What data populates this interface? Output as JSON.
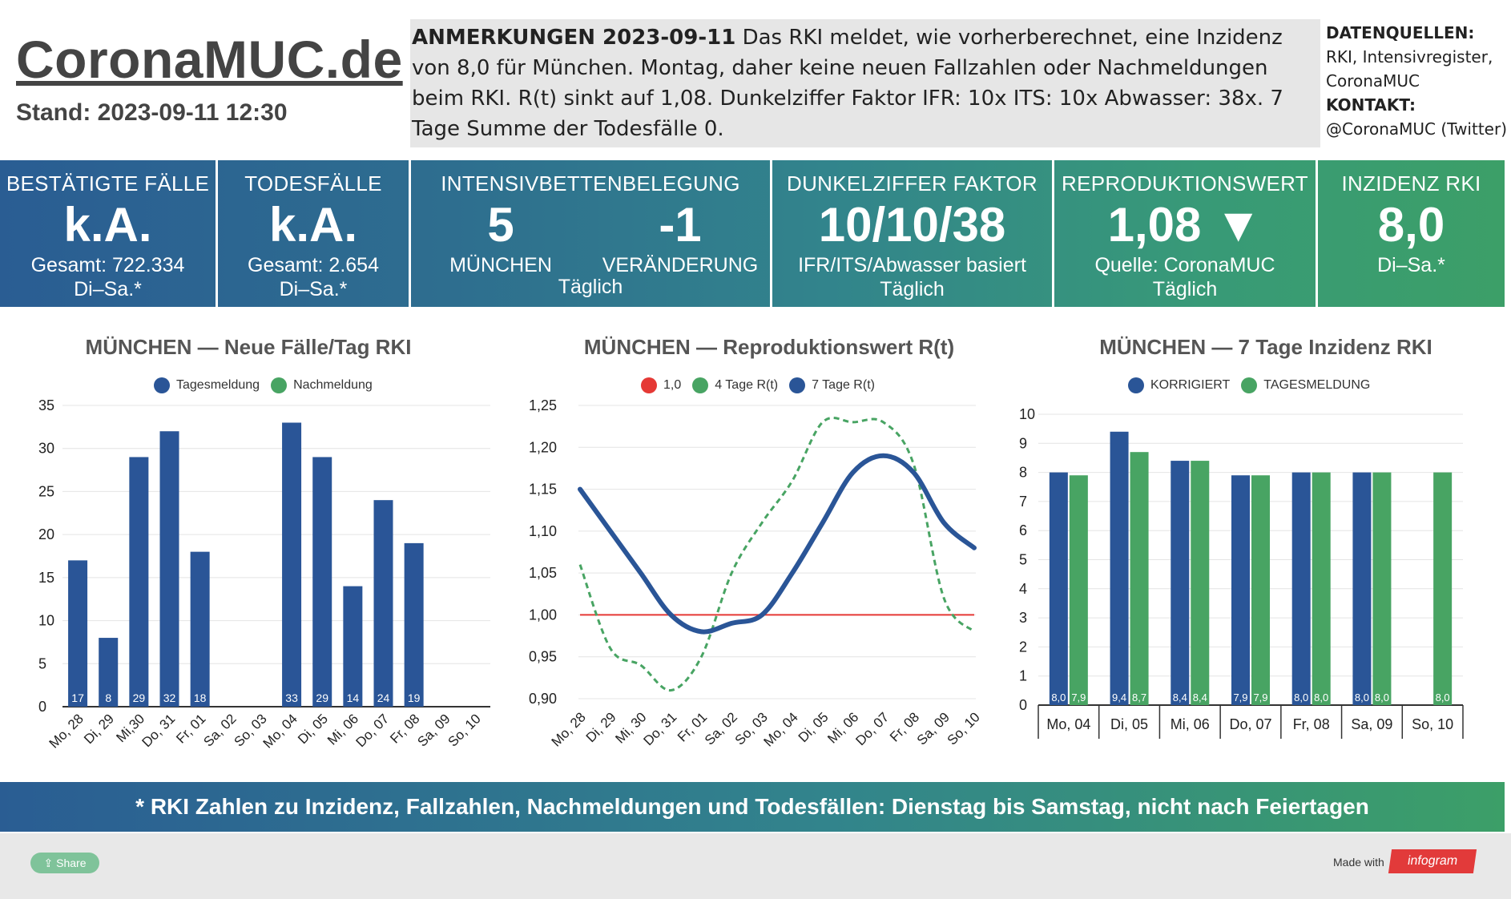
{
  "header": {
    "site_title": "CoronaMUC.de",
    "stand": "Stand: 2023-09-11 12:30",
    "notes_label": "ANMERKUNGEN 2023-09-11",
    "notes_text": " Das RKI meldet, wie vorherberechnet, eine Inzidenz von 8,0 für München. Montag, daher keine neuen Fallzahlen oder Nachmeldungen beim RKI. R(t) sinkt auf 1,08. Dunkelziffer Faktor IFR: 10x ITS: 10x Abwasser: 38x. 7 Tage Summe der Todesfälle 0.",
    "sources_label": "DATENQUELLEN:",
    "sources_line1": "RKI, Intensivregister,",
    "sources_line2": "CoronaMUC",
    "contact_label": "KONTAKT:",
    "contact_value": "@CoronaMUC (Twitter)"
  },
  "kpis": {
    "cases": {
      "title": "BESTÄTIGTE FÄLLE",
      "value": "k.A.",
      "sub1": "Gesamt: 722.334",
      "sub2": "Di–Sa.*"
    },
    "deaths": {
      "title": "TODESFÄLLE",
      "value": "k.A.",
      "sub1": "Gesamt: 2.654",
      "sub2": "Di–Sa.*"
    },
    "icu": {
      "title": "INTENSIVBETTENBELEGUNG",
      "value_left": "5",
      "label_left": "MÜNCHEN",
      "value_right": "-1",
      "label_right": "VERÄNDERUNG",
      "sub": "Täglich"
    },
    "dark": {
      "title": "DUNKELZIFFER FAKTOR",
      "value": "10/10/38",
      "sub1": "IFR/ITS/Abwasser basiert",
      "sub2": "Täglich"
    },
    "rt": {
      "title": "REPRODUKTIONSWERT",
      "value": "1,08 ▼",
      "sub1": "Quelle: CoronaMUC",
      "sub2": "Täglich"
    },
    "incidence": {
      "title": "INZIDENZ RKI",
      "value": "8,0",
      "sub1": "Di–Sa.*"
    }
  },
  "colors": {
    "blue": "#2a5597",
    "green": "#48a463",
    "red": "#e53935"
  },
  "chart_data": [
    {
      "type": "bar",
      "title": "MÜNCHEN — Neue Fälle/Tag RKI",
      "categories": [
        "Mo, 28",
        "Di, 29",
        "Mi,30",
        "Do, 31",
        "Fr, 01",
        "Sa, 02",
        "So, 03",
        "Mo, 04",
        "Di, 05",
        "Mi, 06",
        "Do, 07",
        "Fr, 08",
        "Sa, 09",
        "So, 10"
      ],
      "series": [
        {
          "name": "Tagesmeldung",
          "values": [
            17,
            8,
            29,
            32,
            18,
            null,
            null,
            33,
            29,
            14,
            24,
            19,
            null,
            null
          ]
        },
        {
          "name": "Nachmeldung",
          "values": [
            null,
            null,
            null,
            null,
            null,
            null,
            null,
            null,
            null,
            null,
            null,
            null,
            null,
            null
          ]
        }
      ],
      "ylim": [
        0,
        35
      ],
      "yticks": [
        0,
        5,
        10,
        15,
        20,
        25,
        30,
        35
      ],
      "legend": "top-center"
    },
    {
      "type": "line",
      "title": "MÜNCHEN — Reproduktionswert R(t)",
      "categories": [
        "Mo, 28",
        "Di, 29",
        "Mi, 30",
        "Do, 31",
        "Fr, 01",
        "Sa, 02",
        "So, 03",
        "Mo, 04",
        "Di, 05",
        "Mi, 06",
        "Do, 07",
        "Fr, 08",
        "Sa, 09",
        "So, 10"
      ],
      "series": [
        {
          "name": "1,0",
          "values": [
            1.0,
            1.0,
            1.0,
            1.0,
            1.0,
            1.0,
            1.0,
            1.0,
            1.0,
            1.0,
            1.0,
            1.0,
            1.0,
            1.0
          ]
        },
        {
          "name": "4 Tage R(t)",
          "values": [
            1.06,
            0.96,
            0.94,
            0.91,
            0.95,
            1.05,
            1.11,
            1.16,
            1.23,
            1.23,
            1.23,
            1.18,
            1.02,
            0.98
          ]
        },
        {
          "name": "7 Tage R(t)",
          "values": [
            1.15,
            1.1,
            1.05,
            1.0,
            0.98,
            0.99,
            1.0,
            1.05,
            1.11,
            1.17,
            1.19,
            1.17,
            1.11,
            1.08
          ]
        }
      ],
      "ylim": [
        0.9,
        1.25
      ],
      "yticks": [
        "0,90",
        "0,95",
        "1,00",
        "1,05",
        "1,10",
        "1,15",
        "1,20",
        "1,25"
      ],
      "legend": "top-center"
    },
    {
      "type": "bar",
      "title": "MÜNCHEN — 7 Tage Inzidenz RKI",
      "categories": [
        "Mo, 04",
        "Di, 05",
        "Mi, 06",
        "Do, 07",
        "Fr, 08",
        "Sa, 09",
        "So, 10"
      ],
      "series": [
        {
          "name": "KORRIGIERT",
          "values": [
            8.0,
            9.4,
            8.4,
            7.9,
            8.0,
            8.0,
            null
          ],
          "labels": [
            "8,0",
            "9,4",
            "8,4",
            "7,9",
            "8,0",
            "8,0",
            ""
          ]
        },
        {
          "name": "TAGESMELDUNG",
          "values": [
            7.9,
            8.7,
            8.4,
            7.9,
            8.0,
            8.0,
            8.0
          ],
          "labels": [
            "7,9",
            "8,7",
            "8,4",
            "7,9",
            "8,0",
            "8,0",
            "8,0"
          ]
        }
      ],
      "ylim": [
        0,
        10
      ],
      "yticks": [
        0,
        1,
        2,
        3,
        4,
        5,
        6,
        7,
        8,
        9,
        10
      ],
      "legend": "top-center"
    }
  ],
  "footer": {
    "note": "* RKI Zahlen zu Inzidenz, Fallzahlen, Nachmeldungen und Todesfällen: Dienstag bis Samstag, nicht nach Feiertagen",
    "share": "Share",
    "made_with": "Made with",
    "brand": "infogram"
  }
}
